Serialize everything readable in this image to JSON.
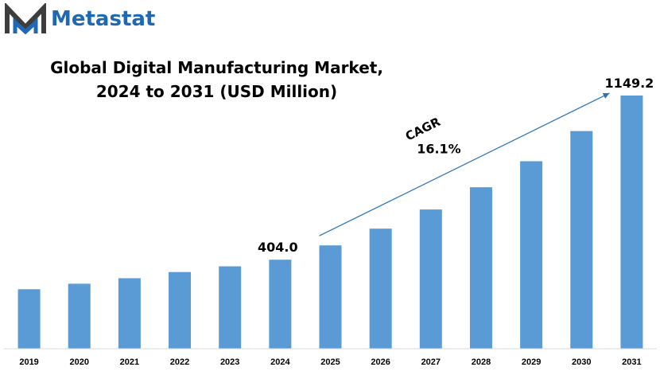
{
  "brand": {
    "name": "Metastat",
    "logo_icon": "metastat-m-logo-icon",
    "color": "#1f68b3"
  },
  "chart_data": {
    "type": "bar",
    "title_line1": "Global Digital Manufacturing  Market,",
    "title_line2": "2024 to 2031 (USD Million)",
    "xlabel": "",
    "ylabel": "",
    "categories": [
      "2019",
      "2020",
      "2021",
      "2022",
      "2023",
      "2024",
      "2025",
      "2026",
      "2027",
      "2028",
      "2029",
      "2030",
      "2031"
    ],
    "values": [
      270,
      295,
      320,
      348,
      374,
      404,
      469,
      545,
      632,
      733,
      851,
      988,
      1149.2
    ],
    "ylim": [
      0,
      1180
    ],
    "bar_color": "#5b9bd5",
    "grid": false,
    "data_labels": [
      {
        "category": "2024",
        "text": "404.0"
      },
      {
        "category": "2031",
        "text": "1149.2"
      }
    ],
    "annotation": {
      "label": "CAGR",
      "value": "16.1%",
      "from_category": "2025",
      "to_category": "2031"
    }
  }
}
